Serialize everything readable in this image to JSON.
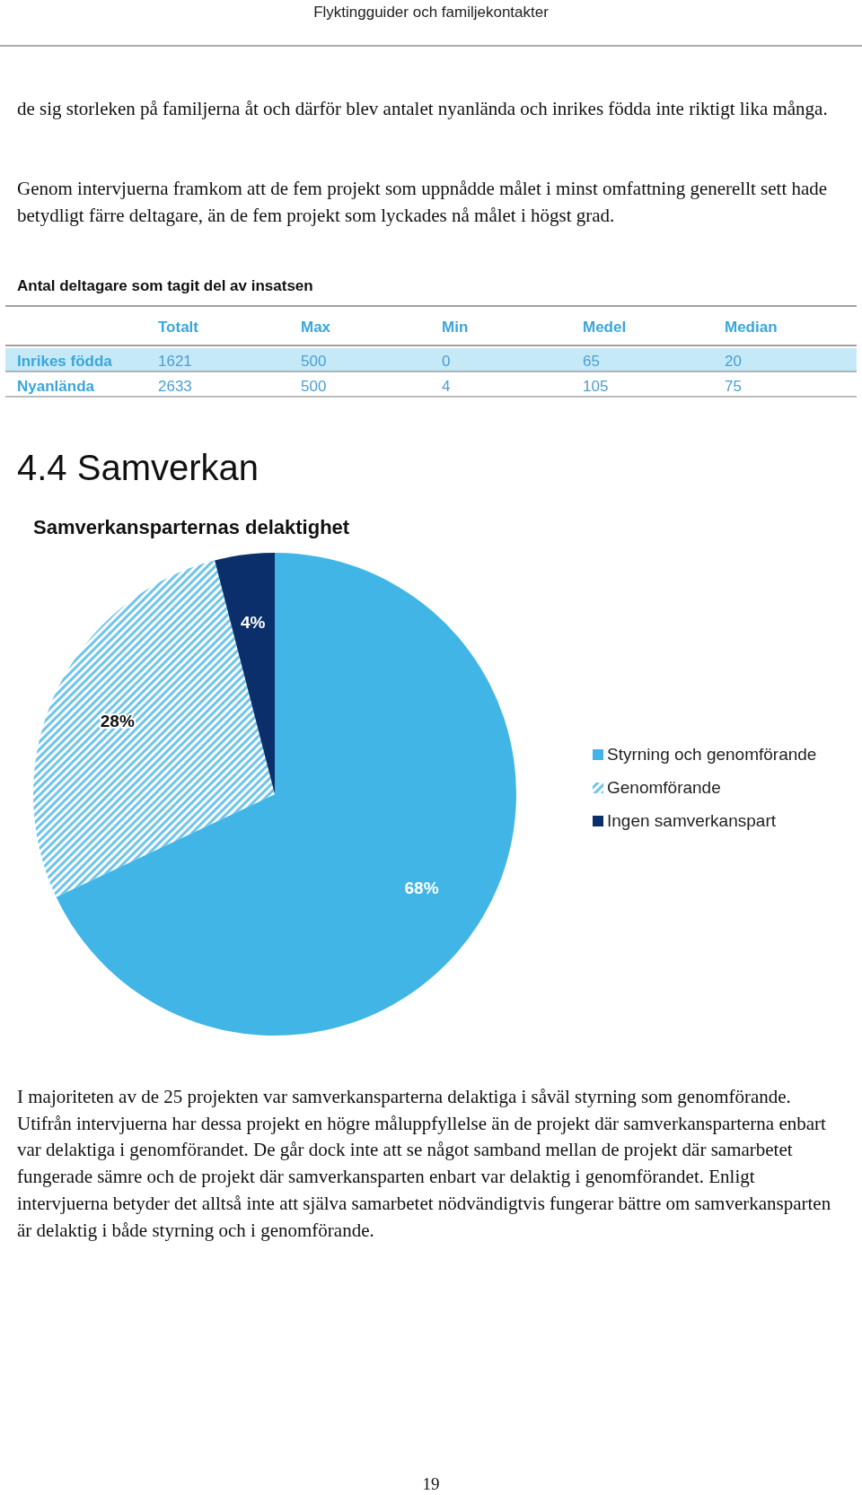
{
  "chart_data": [
    {
      "type": "heatmap",
      "title": "Antal deltagare som tagit del av insatsen",
      "categories": [
        "Totalt",
        "Max",
        "Min",
        "Medel",
        "Median"
      ],
      "y_categories": [
        "Inrikes födda",
        "Nyanlända"
      ],
      "cells": [
        [
          1621,
          500,
          0,
          65,
          20
        ],
        [
          2633,
          500,
          4,
          105,
          75
        ]
      ],
      "data_labels": true,
      "annotations": [
        "Flyktingguider och familjekontakter",
        "de sig storleken på familjerna åt och därför blev antalet nyanlända och inrikes födda inte riktigt lika många.",
        "Genom intervjuerna framkom att de fem projekt som uppnådde målet i minst omfattning generellt sett hade betydligt färre deltagare, än de fem projekt som lyckades nå målet i högst grad."
      ]
    },
    {
      "type": "pie",
      "title": "Samverkansparternas delaktighet",
      "categories": [
        "Styrning och genomförande",
        "Genomförande",
        "Ingen samverkanspart"
      ],
      "values": [
        68,
        28,
        4
      ],
      "colors": [
        "#41b6e6",
        "#6cc4ec",
        "#0b2f6a"
      ],
      "value_labels": [
        "68%",
        "28%",
        "4%"
      ],
      "legend": "right",
      "annotations": [
        "4.4 Samverkan",
        "I majoriteten av de 25 projekten var samverkansparterna delaktiga i såväl styrning som genomförande. Utifrån intervjuerna har dessa projekt en högre måluppfyllelse än de projekt där samverkansparterna enbart var delaktiga i genomförandet. De går dock inte att se något samband mellan de projekt där samarbetet fungerade sämre och de projekt där samverkansparten enbart var delaktig i genomförandet. Enligt intervjuerna betyder det alltså inte att själva samarbetet nödvändigtvis fungerar bättre om samverkansparten är delaktig i både styrning och i genomförande.",
        "19"
      ]
    }
  ]
}
